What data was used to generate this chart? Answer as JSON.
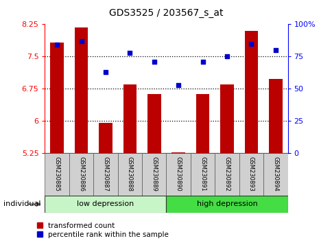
{
  "title": "GDS3525 / 203567_s_at",
  "samples": [
    "GSM230885",
    "GSM230886",
    "GSM230887",
    "GSM230888",
    "GSM230889",
    "GSM230890",
    "GSM230891",
    "GSM230892",
    "GSM230893",
    "GSM230894"
  ],
  "red_values": [
    7.82,
    8.17,
    5.96,
    6.85,
    6.62,
    5.27,
    6.62,
    6.85,
    8.1,
    6.98
  ],
  "blue_values": [
    84,
    87,
    63,
    78,
    71,
    53,
    71,
    75,
    85,
    80
  ],
  "ylim_left": [
    5.25,
    8.25
  ],
  "ylim_right": [
    0,
    100
  ],
  "yticks_left": [
    5.25,
    6.0,
    6.75,
    7.5,
    8.25
  ],
  "ytick_labels_left": [
    "5.25",
    "6",
    "6.75",
    "7.5",
    "8.25"
  ],
  "yticks_right": [
    0,
    25,
    50,
    75,
    100
  ],
  "ytick_labels_right": [
    "0",
    "25",
    "50",
    "75",
    "100%"
  ],
  "hgrid_lines": [
    6.0,
    6.75,
    7.5
  ],
  "groups": [
    {
      "label": "low depression",
      "start": 0,
      "end": 5,
      "color": "#c8f5c8"
    },
    {
      "label": "high depression",
      "start": 5,
      "end": 10,
      "color": "#44dd44"
    }
  ],
  "individual_label": "individual",
  "bar_color": "#bb0000",
  "dot_color": "#0000cc",
  "legend_red_label": "transformed count",
  "legend_blue_label": "percentile rank within the sample",
  "bar_width": 0.55,
  "base_value": 5.25,
  "bg_color": "#ffffff"
}
